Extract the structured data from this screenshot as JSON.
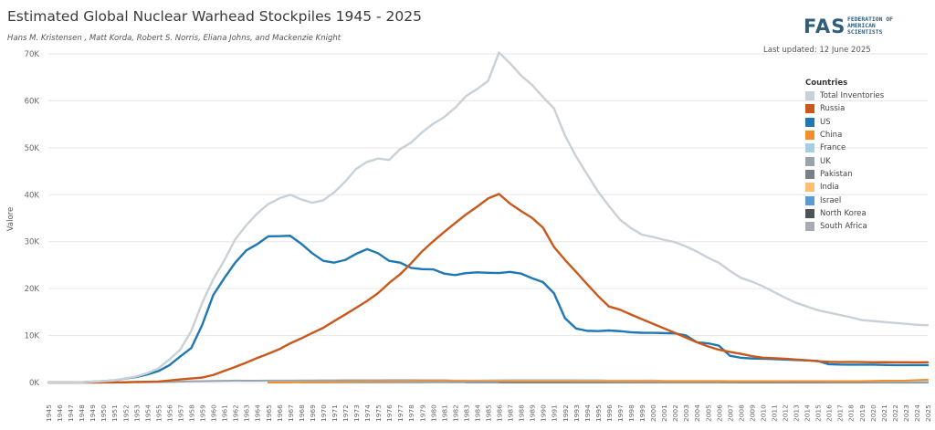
{
  "header": {
    "title": "Estimated Global Nuclear Warhead Stockpiles 1945 - 2025",
    "subtitle": "Hans M. Kristensen , Matt Korda, Robert S. Norris, Eliana Johns, and Mackenzie Knight",
    "updated": "Last updated: 12 June 2025",
    "logo_mark": "FAS",
    "logo_name": "FEDERATION OF AMERICAN SCIENTISTS"
  },
  "colors": {
    "total": "#c8d0d8",
    "russia": "#c8581b",
    "us": "#1f77b4",
    "china": "#f28e2b",
    "france": "#a6cee3",
    "uk": "#9aa3ab",
    "pakistan": "#7b8087",
    "india": "#fdbf6f",
    "israel": "#5b9bd5",
    "north_korea": "#4d5358",
    "south_africa": "#a9adb2",
    "grid": "#e6e6e6",
    "axis_text": "#666666"
  },
  "chart_data": {
    "type": "line",
    "title": "Estimated Global Nuclear Warhead Stockpiles 1945 - 2025",
    "xlabel": "",
    "ylabel": "Valore",
    "ylim": [
      0,
      70000
    ],
    "yticks": [
      0,
      10000,
      20000,
      30000,
      40000,
      50000,
      60000,
      70000
    ],
    "ytick_labels": [
      "0K",
      "10K",
      "20K",
      "30K",
      "40K",
      "50K",
      "60K",
      "70K"
    ],
    "legend_title": "Countries",
    "legend_position": "top-right",
    "x": [
      1945,
      1946,
      1947,
      1948,
      1949,
      1950,
      1951,
      1952,
      1953,
      1954,
      1955,
      1956,
      1957,
      1958,
      1959,
      1960,
      1961,
      1962,
      1963,
      1964,
      1965,
      1966,
      1967,
      1968,
      1969,
      1970,
      1971,
      1972,
      1973,
      1974,
      1975,
      1976,
      1977,
      1978,
      1979,
      1980,
      1981,
      1982,
      1983,
      1984,
      1985,
      1986,
      1987,
      1988,
      1989,
      1990,
      1991,
      1992,
      1993,
      1994,
      1995,
      1996,
      1997,
      1998,
      1999,
      2000,
      2001,
      2002,
      2003,
      2004,
      2005,
      2006,
      2007,
      2008,
      2009,
      2010,
      2011,
      2012,
      2013,
      2014,
      2015,
      2016,
      2017,
      2018,
      2019,
      2020,
      2021,
      2022,
      2023,
      2024,
      2025
    ],
    "series": [
      {
        "name": "Total Inventories",
        "key": "total",
        "values": [
          2,
          9,
          13,
          50,
          170,
          300,
          440,
          850,
          1300,
          2000,
          3000,
          4900,
          7000,
          11000,
          17000,
          22000,
          26000,
          30500,
          33500,
          36000,
          38000,
          39200,
          40000,
          39000,
          38300,
          38800,
          40500,
          42800,
          45500,
          47000,
          47700,
          47400,
          49700,
          51100,
          53300,
          55100,
          56500,
          58500,
          61000,
          62500,
          64200,
          70300,
          68000,
          65400,
          63400,
          60800,
          58400,
          52600,
          48200,
          44400,
          40700,
          37600,
          34700,
          32900,
          31500,
          31000,
          30400,
          29900,
          29000,
          27900,
          26600,
          25500,
          23800,
          22300,
          21500,
          20500,
          19300,
          18100,
          17000,
          16200,
          15400,
          14900,
          14400,
          13900,
          13300,
          13100,
          12900,
          12700,
          12500,
          12300,
          12200
        ]
      },
      {
        "name": "Russia",
        "key": "russia",
        "values": [
          0,
          0,
          0,
          0,
          1,
          5,
          25,
          50,
          120,
          150,
          200,
          426,
          660,
          869,
          1060,
          1605,
          2471,
          3322,
          4238,
          5221,
          6129,
          7089,
          8339,
          9399,
          10538,
          11643,
          13092,
          14478,
          15915,
          17385,
          19055,
          21205,
          23044,
          25393,
          27935,
          30062,
          32049,
          33952,
          35804,
          37431,
          39197,
          40159,
          38107,
          36538,
          35078,
          32980,
          28879,
          26127,
          23580,
          20982,
          18454,
          16196,
          15514,
          14481,
          13493,
          12524,
          11550,
          10588,
          9574,
          8575,
          7709,
          6983,
          6517,
          6112,
          5632,
          5286,
          5180,
          5070,
          4900,
          4750,
          4525,
          4420,
          4370,
          4380,
          4360,
          4320,
          4325,
          4320,
          4310,
          4300,
          4309
        ]
      },
      {
        "name": "US",
        "key": "us",
        "values": [
          2,
          9,
          13,
          50,
          170,
          299,
          438,
          841,
          1169,
          1703,
          2422,
          3692,
          5543,
          7345,
          12298,
          18638,
          22229,
          25540,
          28133,
          29463,
          31139,
          31175,
          31255,
          29561,
          27552,
          25921,
          25542,
          26100,
          27410,
          28419,
          27526,
          25914,
          25542,
          24418,
          24138,
          24104,
          23208,
          22886,
          23305,
          23459,
          23368,
          23317,
          23575,
          23205,
          22217,
          21392,
          19008,
          13708,
          11511,
          11011,
          10953,
          11085,
          10940,
          10714,
          10600,
          10577,
          10526,
          10457,
          10027,
          8570,
          8360,
          7853,
          5709,
          5273,
          5113,
          5066,
          5000,
          4900,
          4800,
          4700,
          4600,
          3900,
          3822,
          3800,
          3805,
          3800,
          3750,
          3708,
          3708,
          3700,
          3700
        ]
      },
      {
        "name": "China",
        "key": "china",
        "values": [
          null,
          null,
          null,
          null,
          null,
          null,
          null,
          null,
          null,
          null,
          null,
          null,
          null,
          null,
          null,
          null,
          null,
          null,
          null,
          null,
          1,
          5,
          25,
          50,
          75,
          75,
          100,
          130,
          150,
          170,
          185,
          205,
          225,
          240,
          280,
          280,
          280,
          300,
          300,
          300,
          300,
          300,
          300,
          300,
          300,
          300,
          300,
          300,
          300,
          300,
          300,
          300,
          300,
          300,
          300,
          300,
          300,
          300,
          300,
          300,
          300,
          300,
          300,
          300,
          300,
          300,
          300,
          300,
          300,
          300,
          300,
          300,
          300,
          300,
          300,
          350,
          380,
          400,
          410,
          500,
          600
        ]
      },
      {
        "name": "France",
        "key": "france",
        "values": [
          null,
          null,
          null,
          null,
          null,
          null,
          null,
          null,
          null,
          null,
          null,
          null,
          null,
          null,
          null,
          null,
          null,
          null,
          null,
          null,
          4,
          32,
          36,
          36,
          36,
          36,
          45,
          70,
          116,
          145,
          188,
          212,
          228,
          235,
          250,
          260,
          274,
          330,
          360,
          415,
          460,
          500,
          535,
          540,
          540,
          540,
          540,
          540,
          525,
          510,
          500,
          450,
          450,
          450,
          450,
          470,
          350,
          350,
          350,
          350,
          350,
          350,
          300,
          300,
          300,
          300,
          300,
          300,
          300,
          300,
          300,
          300,
          300,
          300,
          290,
          290,
          290,
          290,
          290,
          290,
          290
        ]
      },
      {
        "name": "UK",
        "key": "uk",
        "values": [
          null,
          null,
          null,
          null,
          null,
          null,
          null,
          null,
          42,
          71,
          106,
          128,
          206,
          271,
          286,
          329,
          369,
          405,
          392,
          386,
          410,
          410,
          420,
          430,
          440,
          460,
          470,
          475,
          480,
          490,
          495,
          500,
          500,
          500,
          492,
          492,
          492,
          421,
          421,
          421,
          422,
          422,
          422,
          422,
          422,
          422,
          350,
          300,
          250,
          250,
          250,
          250,
          200,
          200,
          200,
          200,
          200,
          200,
          200,
          200,
          200,
          200,
          200,
          200,
          200,
          200,
          225,
          225,
          225,
          215,
          215,
          215,
          215,
          215,
          215,
          225,
          225,
          225,
          225,
          225,
          225
        ]
      },
      {
        "name": "Pakistan",
        "key": "pakistan",
        "values": [
          null,
          null,
          null,
          null,
          null,
          null,
          null,
          null,
          null,
          null,
          null,
          null,
          null,
          null,
          null,
          null,
          null,
          null,
          null,
          null,
          null,
          null,
          null,
          null,
          null,
          null,
          null,
          null,
          null,
          null,
          null,
          null,
          null,
          null,
          null,
          null,
          null,
          null,
          null,
          null,
          null,
          0,
          0,
          0,
          0,
          0,
          0,
          0,
          0,
          5,
          10,
          15,
          20,
          25,
          30,
          35,
          40,
          45,
          50,
          55,
          60,
          70,
          80,
          90,
          100,
          110,
          115,
          120,
          120,
          120,
          130,
          140,
          150,
          150,
          160,
          165,
          165,
          165,
          170,
          170,
          170
        ]
      },
      {
        "name": "India",
        "key": "india",
        "values": [
          null,
          null,
          null,
          null,
          null,
          null,
          null,
          null,
          null,
          null,
          null,
          null,
          null,
          null,
          null,
          null,
          null,
          null,
          null,
          null,
          null,
          null,
          null,
          null,
          null,
          null,
          null,
          null,
          null,
          null,
          null,
          null,
          null,
          null,
          null,
          null,
          null,
          null,
          null,
          null,
          null,
          null,
          null,
          null,
          null,
          null,
          null,
          null,
          null,
          null,
          null,
          null,
          null,
          5,
          10,
          15,
          20,
          25,
          30,
          35,
          40,
          50,
          60,
          70,
          80,
          90,
          100,
          110,
          110,
          110,
          120,
          130,
          130,
          130,
          140,
          150,
          156,
          160,
          164,
          172,
          180
        ]
      },
      {
        "name": "Israel",
        "key": "israel",
        "values": [
          null,
          null,
          null,
          null,
          null,
          null,
          null,
          null,
          null,
          null,
          null,
          null,
          null,
          null,
          null,
          null,
          null,
          null,
          null,
          null,
          null,
          null,
          null,
          2,
          6,
          10,
          20,
          25,
          30,
          35,
          40,
          45,
          50,
          55,
          60,
          65,
          70,
          75,
          80,
          80,
          80,
          80,
          80,
          80,
          80,
          80,
          80,
          80,
          80,
          80,
          80,
          80,
          80,
          80,
          80,
          80,
          80,
          80,
          80,
          80,
          80,
          80,
          80,
          80,
          80,
          80,
          80,
          80,
          80,
          80,
          80,
          80,
          80,
          80,
          80,
          90,
          90,
          90,
          90,
          90,
          90
        ]
      },
      {
        "name": "North Korea",
        "key": "north_korea",
        "values": [
          null,
          null,
          null,
          null,
          null,
          null,
          null,
          null,
          null,
          null,
          null,
          null,
          null,
          null,
          null,
          null,
          null,
          null,
          null,
          null,
          null,
          null,
          null,
          null,
          null,
          null,
          null,
          null,
          null,
          null,
          null,
          null,
          null,
          null,
          null,
          null,
          null,
          null,
          null,
          null,
          null,
          null,
          null,
          null,
          null,
          null,
          null,
          null,
          null,
          null,
          null,
          null,
          null,
          null,
          null,
          null,
          null,
          null,
          null,
          null,
          null,
          2,
          2,
          4,
          6,
          8,
          10,
          12,
          15,
          20,
          20,
          30,
          30,
          30,
          30,
          40,
          40,
          40,
          50,
          50,
          50
        ]
      },
      {
        "name": "South Africa",
        "key": "south_africa",
        "values": [
          null,
          null,
          null,
          null,
          null,
          null,
          null,
          null,
          null,
          null,
          null,
          null,
          null,
          null,
          null,
          null,
          null,
          null,
          null,
          null,
          null,
          null,
          null,
          null,
          null,
          null,
          null,
          null,
          null,
          null,
          null,
          null,
          null,
          null,
          null,
          null,
          null,
          null,
          1,
          2,
          3,
          4,
          5,
          6,
          6,
          6,
          0,
          0,
          0,
          0,
          0,
          0,
          0,
          0,
          0,
          0,
          0,
          0,
          0,
          0,
          0,
          0,
          0,
          0,
          0,
          0,
          0,
          0,
          0,
          0,
          0,
          0,
          0,
          0,
          0,
          0,
          0,
          0,
          0,
          0,
          0
        ]
      }
    ]
  }
}
